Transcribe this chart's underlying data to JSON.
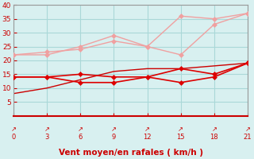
{
  "x": [
    0,
    3,
    6,
    9,
    12,
    15,
    18,
    21
  ],
  "line_pink1": [
    22,
    22,
    25,
    29,
    25,
    22,
    33,
    37
  ],
  "line_pink2": [
    22,
    23,
    24,
    27,
    25,
    36,
    35,
    37
  ],
  "line_red1": [
    14,
    14,
    15,
    14,
    14,
    17,
    15,
    19
  ],
  "line_red2": [
    14,
    14,
    12,
    12,
    14,
    12,
    14,
    19
  ],
  "line_red3": [
    8,
    10,
    13,
    16,
    17,
    17,
    18,
    19
  ],
  "line_pink1_color": "#f0a0a0",
  "line_pink2_color": "#f0a0a0",
  "line_red1_color": "#dd0000",
  "line_red2_color": "#dd0000",
  "line_red3_color": "#cc0000",
  "bg_color": "#d8f0f0",
  "grid_color": "#aad8d8",
  "xlabel": "Vent moyen/en rafales ( km/h )",
  "ylim": [
    0,
    40
  ],
  "xlim": [
    0,
    21
  ],
  "yticks": [
    5,
    10,
    15,
    20,
    25,
    30,
    35,
    40
  ],
  "xticks": [
    0,
    3,
    6,
    9,
    12,
    15,
    18,
    21
  ],
  "xlabel_color": "#cc0000",
  "tick_color": "#cc0000",
  "arrow_symbol": "↗"
}
